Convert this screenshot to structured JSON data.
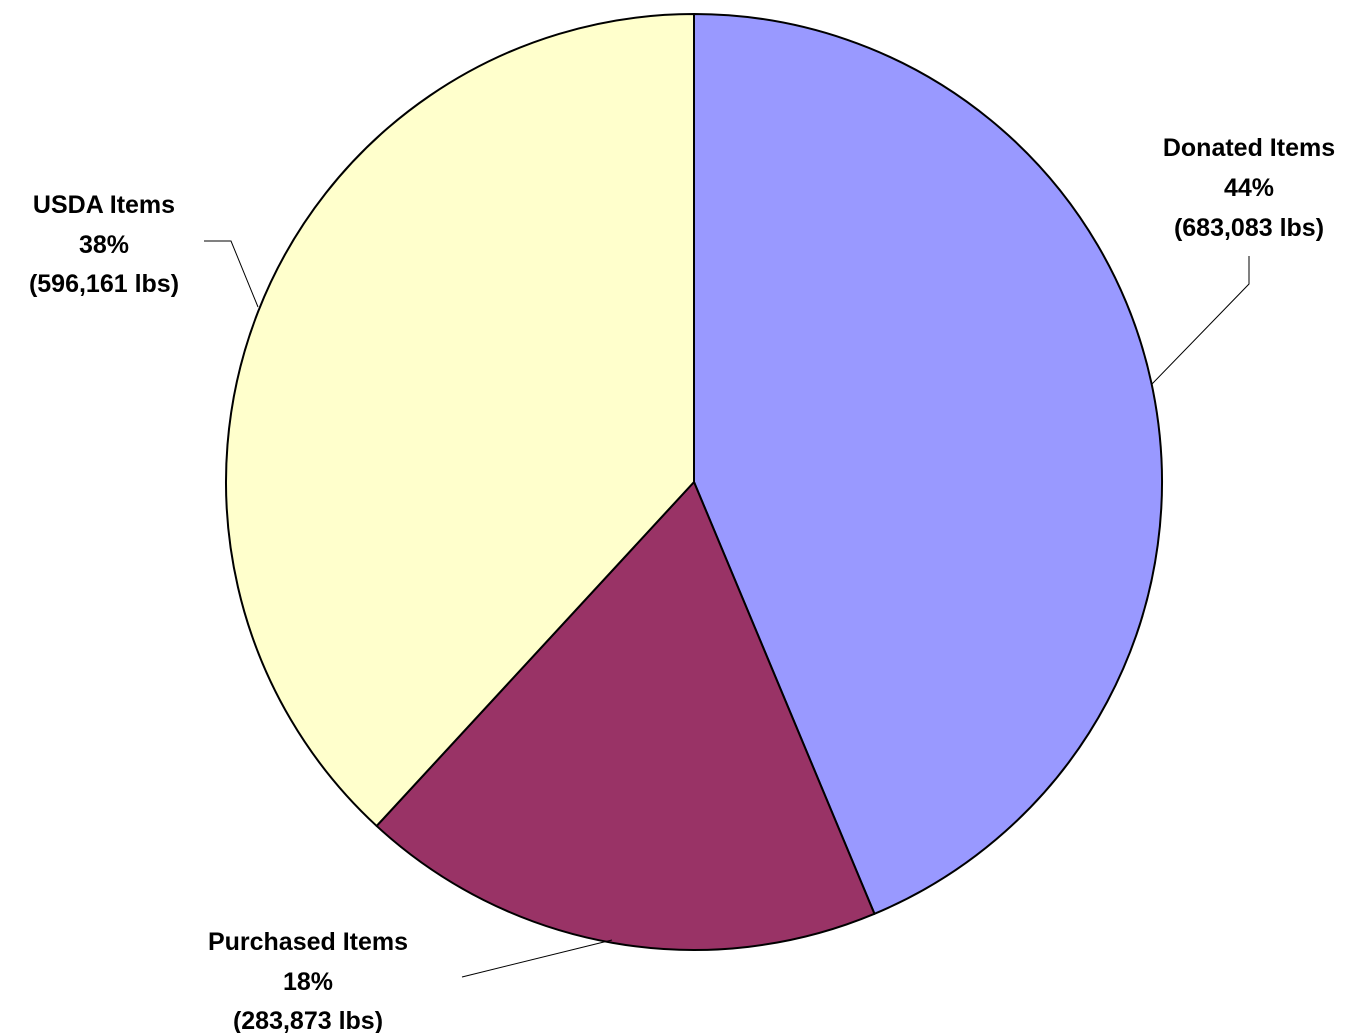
{
  "chart_data": {
    "type": "pie",
    "title": "",
    "slices": [
      {
        "name": "Donated Items",
        "percent_label": "44%",
        "amount_label": "(683,083 lbs)",
        "value": 683083,
        "color": "#9999ff"
      },
      {
        "name": "Purchased Items",
        "percent_label": "18%",
        "amount_label": "(283,873 lbs)",
        "value": 283873,
        "color": "#993366"
      },
      {
        "name": "USDA Items",
        "percent_label": "38%",
        "amount_label": "(596,161 lbs)",
        "value": 596161,
        "color": "#ffffcc"
      }
    ],
    "legend": "none",
    "units": "lbs"
  }
}
